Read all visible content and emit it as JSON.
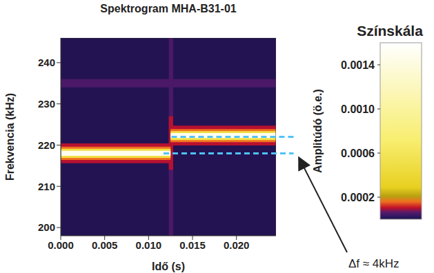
{
  "chart_data": {
    "type": "heatmap",
    "title": "Spektrogram MHA-B31-01",
    "x_label": "Idő (s)",
    "y_label": "Frekvencia (kHz)",
    "xlim": [
      0,
      0.0245
    ],
    "xticks": [
      {
        "value": 0,
        "label": "0.000"
      },
      {
        "value": 0.005,
        "label": "0.005"
      },
      {
        "value": 0.01,
        "label": "0.010"
      },
      {
        "value": 0.015,
        "label": "0.015"
      },
      {
        "value": 0.02,
        "label": "0.020"
      }
    ],
    "ylim": [
      198,
      246
    ],
    "yticks": [
      200,
      210,
      220,
      230,
      240
    ],
    "cells": [
      {
        "x": [
          0,
          0.0245
        ],
        "y": [
          198,
          246
        ],
        "value": 1e-05
      },
      {
        "x": [
          0,
          0.0245
        ],
        "y": [
          234,
          236
        ],
        "value": 5e-05
      },
      {
        "x": [
          0.0123,
          0.0128
        ],
        "y": [
          198,
          246
        ],
        "value": 5e-05
      },
      {
        "x": [
          0.0123,
          0.0128
        ],
        "y": [
          214,
          227
        ],
        "value": 0.0001
      },
      {
        "x": [
          0,
          0.0125
        ],
        "y": [
          215.6,
          220.4
        ],
        "value": 0.0001
      },
      {
        "x": [
          0,
          0.0125
        ],
        "y": [
          216.4,
          219.6
        ],
        "value": 0.00016
      },
      {
        "x": [
          0,
          0.0125
        ],
        "y": [
          216.9,
          219.1
        ],
        "value": 0.0005
      },
      {
        "x": [
          0,
          0.0125
        ],
        "y": [
          217.4,
          218.6
        ],
        "value": 0.0015
      },
      {
        "x": [
          0.0125,
          0.0245
        ],
        "y": [
          219.9,
          224.7
        ],
        "value": 0.0001
      },
      {
        "x": [
          0.0125,
          0.0245
        ],
        "y": [
          220.7,
          223.9
        ],
        "value": 0.00016
      },
      {
        "x": [
          0.0125,
          0.0245
        ],
        "y": [
          221.2,
          223.4
        ],
        "value": 0.0005
      },
      {
        "x": [
          0.0125,
          0.0245
        ],
        "y": [
          221.7,
          222.9
        ],
        "value": 0.0015
      }
    ],
    "colorbar": {
      "title": "Színskála",
      "label": "Amplitúdó (ö.e.)",
      "range": [
        0,
        0.0016
      ],
      "ticks": [
        0.0002,
        0.0006,
        {
          "value": 0.001,
          "label": "0.0010"
        },
        0.0014
      ]
    },
    "reference_lines": [
      {
        "y": 218,
        "x": [
          0.0117,
          0.0265
        ]
      },
      {
        "y": 222,
        "x": [
          0.0126,
          0.0265
        ]
      }
    ],
    "annotations": [
      {
        "text": "Δf ≈ 4kHz"
      }
    ]
  }
}
